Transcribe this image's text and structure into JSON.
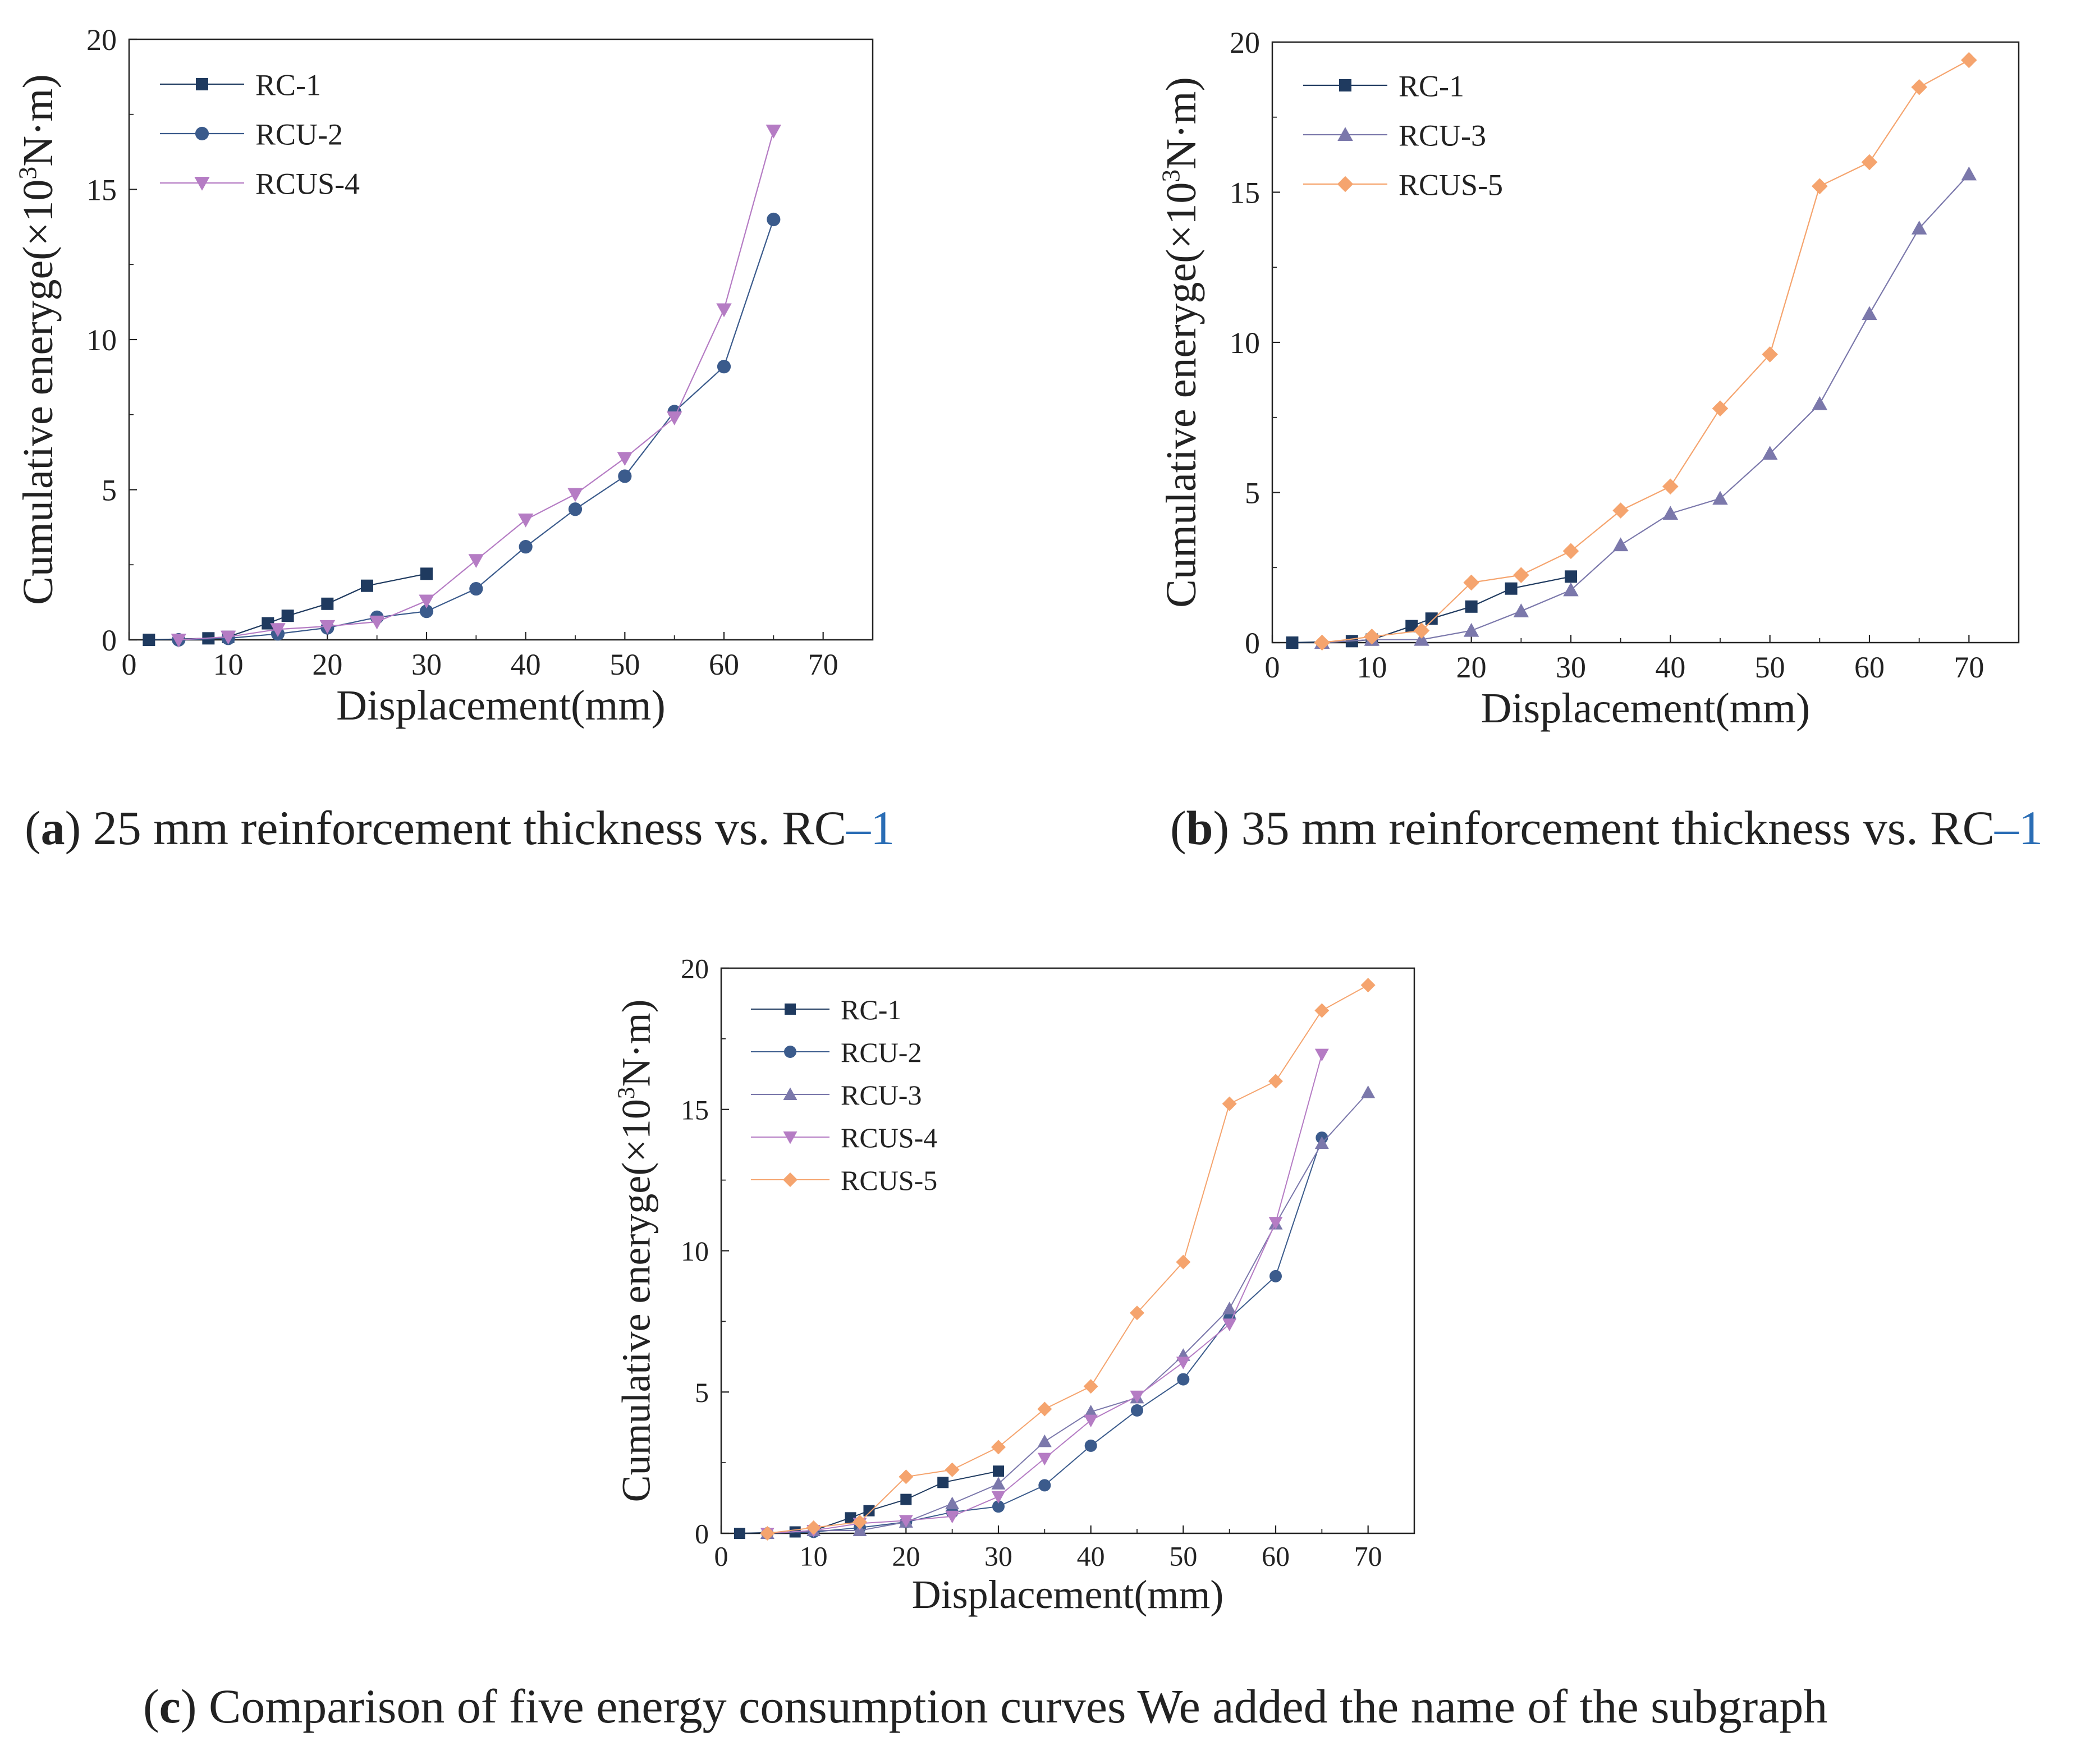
{
  "colors": {
    "RC-1": "#1f3a5f",
    "RCU-2": "#3b5b8c",
    "RCU-3": "#7b78ab",
    "RCUS-4": "#b57cc4",
    "RCUS-5": "#f5a46e"
  },
  "markers": {
    "RC-1": "square",
    "RCU-2": "circle",
    "RCU-3": "triangle-up",
    "RCUS-4": "triangle-down",
    "RCUS-5": "diamond"
  },
  "captions": {
    "a": {
      "open": "(",
      "letter": "a",
      "text": ") 25 mm reinforcement thickness vs. RC",
      "link": "–1"
    },
    "b": {
      "open": "(",
      "letter": "b",
      "text": ") 35 mm reinforcement thickness vs. RC",
      "link": "–1"
    },
    "c": {
      "open": "(",
      "letter": "c",
      "text": ") Comparison of five energy consumption curves We added the name of the subgraph",
      "link": ""
    }
  },
  "chart_data": [
    {
      "id": "a",
      "type": "line",
      "xlabel": "Displacement(mm)",
      "ylabel_prefix": "Cumulative eneryge(×10",
      "ylabel_sup": "3",
      "ylabel_suffix": "N·m)",
      "xlim": [
        0,
        75
      ],
      "ylim": [
        0,
        20
      ],
      "xticks": [
        0,
        10,
        20,
        30,
        40,
        50,
        60,
        70
      ],
      "yticks": [
        0,
        5,
        10,
        15,
        20
      ],
      "grid": false,
      "legend": "top-left",
      "series": [
        {
          "name": "RC-1",
          "x": [
            2,
            8,
            10,
            14,
            16,
            20,
            24,
            30
          ],
          "y": [
            0,
            0.05,
            0.1,
            0.55,
            0.8,
            1.2,
            1.8,
            2.2
          ]
        },
        {
          "name": "RCU-2",
          "x": [
            5,
            10,
            15,
            20,
            25,
            30,
            35,
            40,
            45,
            50,
            55,
            60,
            65
          ],
          "y": [
            0,
            0.05,
            0.2,
            0.4,
            0.75,
            0.95,
            1.7,
            3.1,
            4.35,
            5.45,
            7.6,
            9.1,
            14.0
          ]
        },
        {
          "name": "RCUS-4",
          "x": [
            5,
            10,
            15,
            20,
            25,
            30,
            35,
            40,
            45,
            50,
            55,
            60,
            65
          ],
          "y": [
            0,
            0.1,
            0.35,
            0.45,
            0.6,
            1.3,
            2.65,
            4.0,
            4.85,
            6.05,
            7.4,
            11.0,
            16.95
          ]
        }
      ]
    },
    {
      "id": "b",
      "type": "line",
      "xlabel": "Displacement(mm)",
      "ylabel_prefix": "Cumulative eneryge(×10",
      "ylabel_sup": "3",
      "ylabel_suffix": "N·m)",
      "xlim": [
        0,
        75
      ],
      "ylim": [
        0,
        20
      ],
      "xticks": [
        0,
        10,
        20,
        30,
        40,
        50,
        60,
        70
      ],
      "yticks": [
        0,
        5,
        10,
        15,
        20
      ],
      "grid": false,
      "legend": "top-left",
      "series": [
        {
          "name": "RC-1",
          "x": [
            2,
            8,
            10,
            14,
            16,
            20,
            24,
            30
          ],
          "y": [
            0,
            0.05,
            0.1,
            0.55,
            0.8,
            1.2,
            1.8,
            2.2
          ]
        },
        {
          "name": "RCU-3",
          "x": [
            5,
            10,
            15,
            20,
            25,
            30,
            35,
            40,
            45,
            50,
            55,
            60,
            65,
            70
          ],
          "y": [
            0,
            0.1,
            0.1,
            0.4,
            1.05,
            1.75,
            3.25,
            4.3,
            4.8,
            6.3,
            7.95,
            10.95,
            13.8,
            15.6
          ]
        },
        {
          "name": "RCUS-5",
          "x": [
            5,
            10,
            15,
            20,
            25,
            30,
            35,
            40,
            45,
            50,
            55,
            60,
            65,
            70
          ],
          "y": [
            0,
            0.2,
            0.4,
            2.0,
            2.25,
            3.05,
            4.4,
            5.2,
            7.8,
            9.6,
            15.2,
            16.0,
            18.5,
            19.4
          ]
        }
      ]
    },
    {
      "id": "c",
      "type": "line",
      "xlabel": "Displacement(mm)",
      "ylabel_prefix": "Cumulative eneryge(×10",
      "ylabel_sup": "3",
      "ylabel_suffix": "N·m)",
      "xlim": [
        0,
        75
      ],
      "ylim": [
        0,
        20
      ],
      "xticks": [
        0,
        10,
        20,
        30,
        40,
        50,
        60,
        70
      ],
      "yticks": [
        0,
        5,
        10,
        15,
        20
      ],
      "grid": false,
      "legend": "top-left",
      "series": [
        {
          "name": "RC-1",
          "x": [
            2,
            8,
            10,
            14,
            16,
            20,
            24,
            30
          ],
          "y": [
            0,
            0.05,
            0.1,
            0.55,
            0.8,
            1.2,
            1.8,
            2.2
          ]
        },
        {
          "name": "RCU-2",
          "x": [
            5,
            10,
            15,
            20,
            25,
            30,
            35,
            40,
            45,
            50,
            55,
            60,
            65
          ],
          "y": [
            0,
            0.05,
            0.2,
            0.4,
            0.75,
            0.95,
            1.7,
            3.1,
            4.35,
            5.45,
            7.6,
            9.1,
            14.0
          ]
        },
        {
          "name": "RCU-3",
          "x": [
            5,
            10,
            15,
            20,
            25,
            30,
            35,
            40,
            45,
            50,
            55,
            60,
            65,
            70
          ],
          "y": [
            0,
            0.1,
            0.1,
            0.4,
            1.05,
            1.75,
            3.25,
            4.3,
            4.8,
            6.3,
            7.95,
            10.95,
            13.8,
            15.6
          ]
        },
        {
          "name": "RCUS-4",
          "x": [
            5,
            10,
            15,
            20,
            25,
            30,
            35,
            40,
            45,
            50,
            55,
            60,
            65
          ],
          "y": [
            0,
            0.1,
            0.35,
            0.45,
            0.6,
            1.3,
            2.65,
            4.0,
            4.85,
            6.05,
            7.4,
            11.0,
            16.95
          ]
        },
        {
          "name": "RCUS-5",
          "x": [
            5,
            10,
            15,
            20,
            25,
            30,
            35,
            40,
            45,
            50,
            55,
            60,
            65,
            70
          ],
          "y": [
            0,
            0.2,
            0.4,
            2.0,
            2.25,
            3.05,
            4.4,
            5.2,
            7.8,
            9.6,
            15.2,
            16.0,
            18.5,
            19.4
          ]
        }
      ]
    }
  ]
}
